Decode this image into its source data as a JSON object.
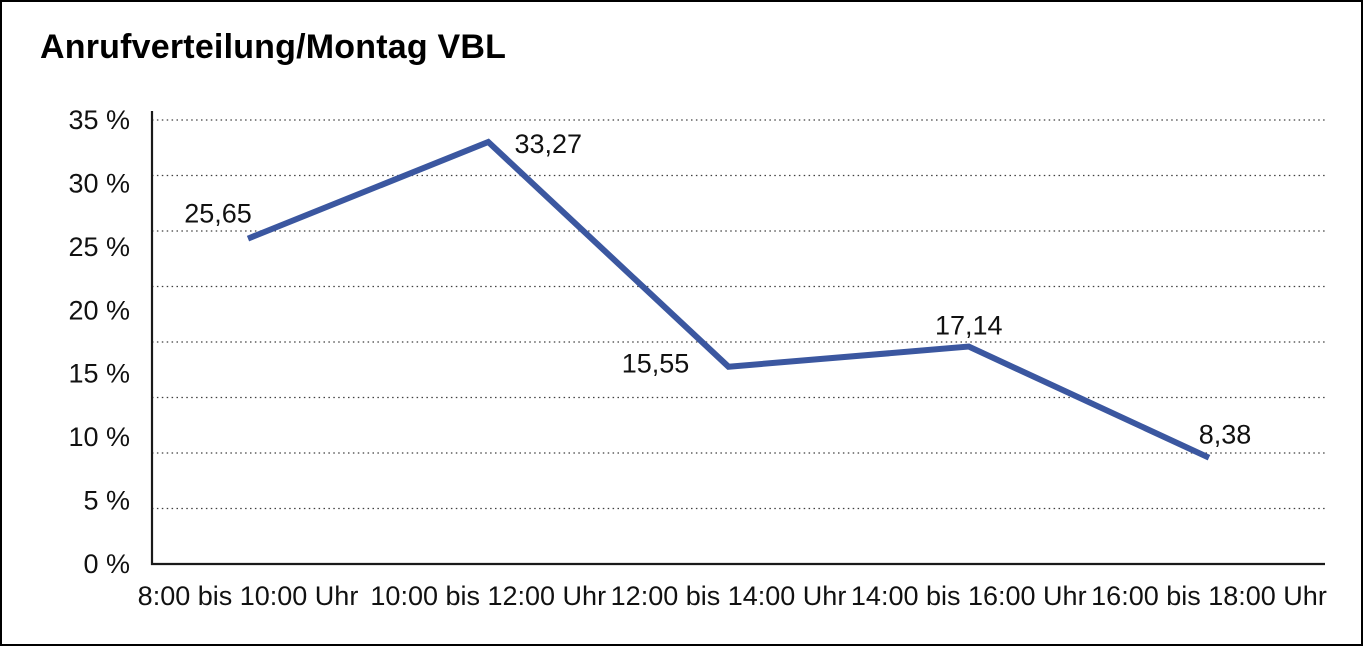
{
  "header": {
    "title": "Anrufverteilung/Montag VBL"
  },
  "colors": {
    "line": "#3B57A0",
    "grid": "#3f3f3f",
    "axis": "#1a1a1a",
    "background": "#ffffff",
    "frame_border": "#000000",
    "text": "#111111"
  },
  "chart_data": {
    "type": "line",
    "title": "Anrufverteilung/Montag VBL",
    "categories": [
      "8:00 bis 10:00 Uhr",
      "10:00 bis 12:00 Uhr",
      "12:00 bis 14:00 Uhr",
      "14:00 bis 16:00 Uhr",
      "16:00 bis 18:00 Uhr"
    ],
    "values": [
      25.65,
      33.27,
      15.55,
      17.14,
      8.38
    ],
    "value_labels": [
      "25,65",
      "33,27",
      "15,55",
      "17,14",
      "8,38"
    ],
    "value_label_positions": [
      "above-left",
      "right",
      "left",
      "above",
      "above-right"
    ],
    "yaxis": {
      "ticks": [
        {
          "label": "35 %",
          "value": 35
        },
        {
          "label": "30 %",
          "value": 30
        },
        {
          "label": "25 %",
          "value": 25
        },
        {
          "label": "20 %",
          "value": 20
        },
        {
          "label": "15 %",
          "value": 15
        },
        {
          "label": "10 %",
          "value": 10
        },
        {
          "label": "5 %",
          "value": 5
        },
        {
          "label": "0 %",
          "value": 0
        }
      ],
      "range": [
        0,
        35
      ],
      "unit": "%"
    },
    "xlabel": "",
    "ylabel": "",
    "grid": {
      "horizontal": "dotted",
      "divisions": 8
    },
    "legend": "none",
    "line_color": "#3B57A0"
  }
}
